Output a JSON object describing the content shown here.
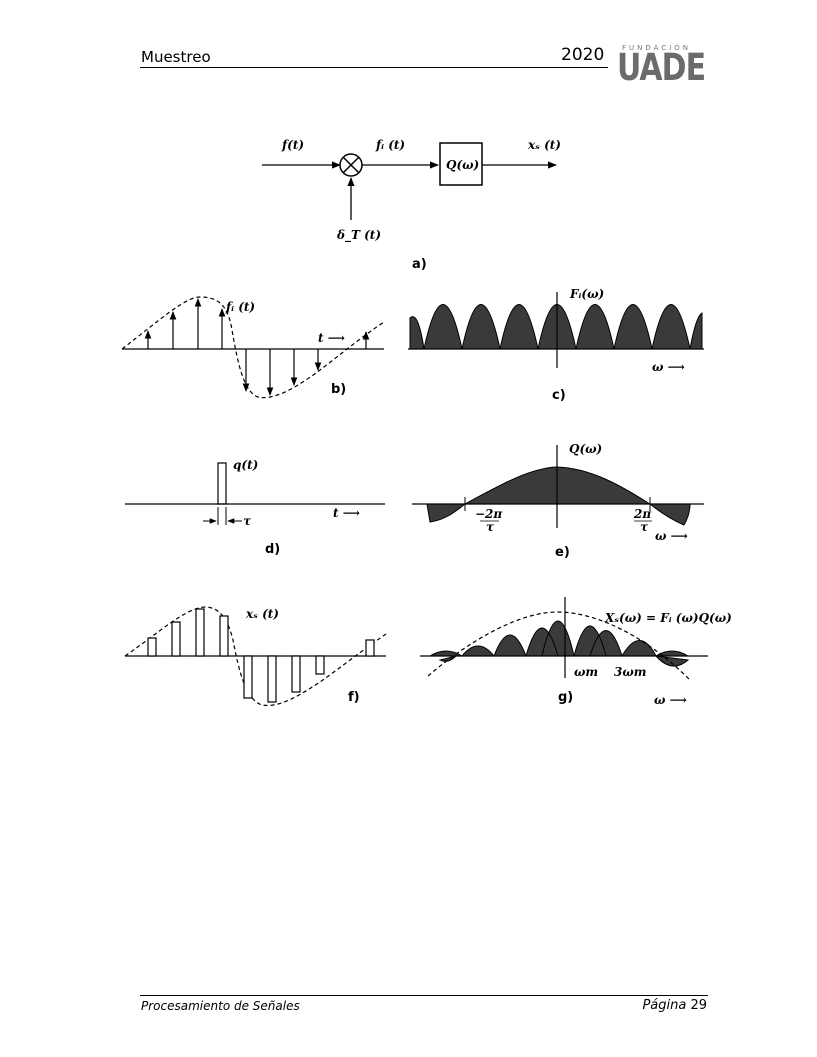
{
  "header": {
    "title": "Muestreo",
    "year": "2020",
    "logo_small": "FUNDACIÓN",
    "logo_main": "UADE"
  },
  "figure": {
    "a": {
      "input": "f(t)",
      "product": "fᵢ (t)",
      "block": "Q(ω)",
      "output": "xₛ (t)",
      "impulse": "δ_T (t)",
      "caption": "a)"
    },
    "b": {
      "label": "fᵢ (t)",
      "axis": "t ⟶",
      "caption": "b)"
    },
    "c": {
      "label": "Fᵢ(ω)",
      "axis": "ω ⟶",
      "caption": "c)"
    },
    "d": {
      "label": "q(t)",
      "axis": "t ⟶",
      "tau": "τ",
      "caption": "d)"
    },
    "e": {
      "label": "Q(ω)",
      "tick_left_num": "−2π",
      "tick_left_den": "τ",
      "tick_right_num": "2π",
      "tick_right_den": "τ",
      "axis": "ω ⟶",
      "caption": "e)"
    },
    "f": {
      "label": "xₛ (t)",
      "caption": "f)"
    },
    "g": {
      "label": "Xₛ(ω) = Fᵢ (ω)Q(ω)",
      "tick1": "ωm",
      "tick2": "3ωm",
      "axis": "ω ⟶",
      "caption": "g)"
    }
  },
  "footer": {
    "left": "Procesamiento de Señales",
    "page_word": "Página",
    "page_num": "29"
  }
}
